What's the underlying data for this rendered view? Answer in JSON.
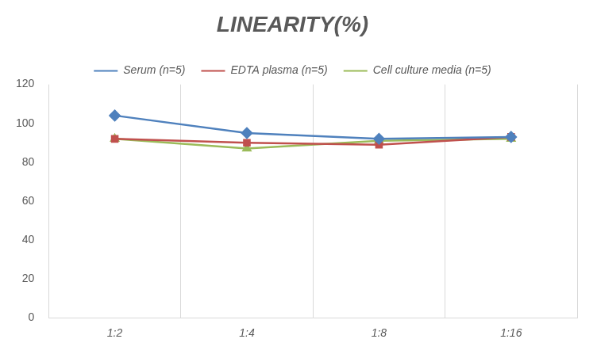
{
  "chart_data": {
    "type": "line",
    "title": "LINEARITY(%)",
    "categories": [
      "1:2",
      "1:4",
      "1:8",
      "1:16"
    ],
    "series": [
      {
        "name": "Serum (n=5)",
        "color": "#4f81bd",
        "marker": "diamond",
        "values": [
          104,
          95,
          92,
          93
        ]
      },
      {
        "name": "EDTA plasma (n=5)",
        "color": "#c0504d",
        "marker": "square",
        "values": [
          92,
          90,
          89,
          93
        ]
      },
      {
        "name": "Cell culture media (n=5)",
        "color": "#9bbb59",
        "marker": "triangle",
        "values": [
          92,
          87,
          91,
          92
        ]
      }
    ],
    "ylim": [
      0,
      120
    ],
    "yticks": [
      0,
      20,
      40,
      60,
      80,
      100,
      120
    ],
    "grid": true,
    "legend": "top"
  }
}
